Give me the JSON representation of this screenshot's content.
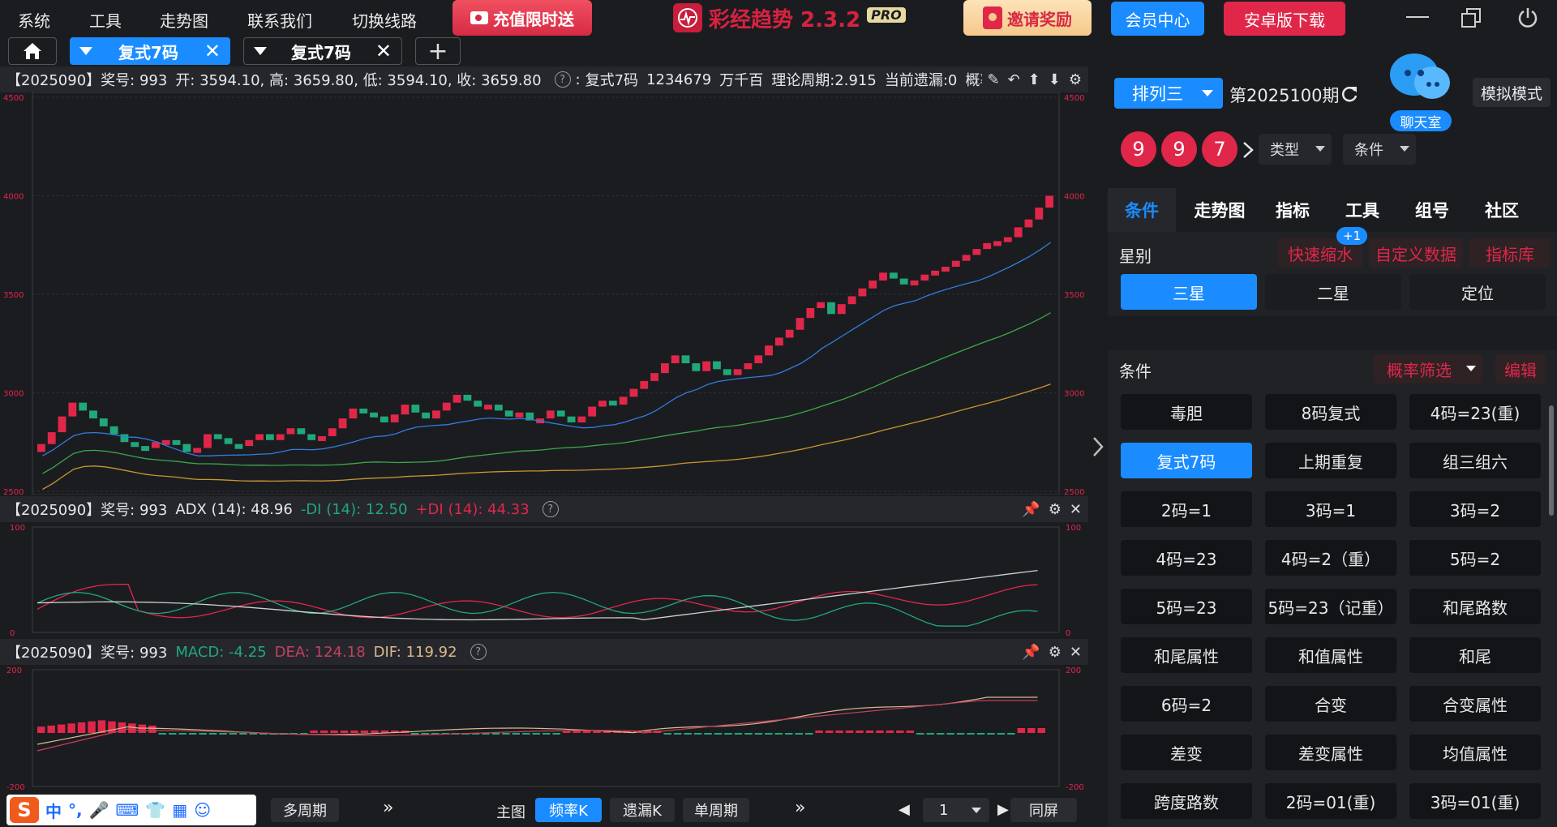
{
  "menu": {
    "items": [
      "系统",
      "工具",
      "走势图",
      "联系我们",
      "切换线路"
    ]
  },
  "promo": {
    "recharge": "充值限时送",
    "invite": "邀请奖励"
  },
  "brand": {
    "name": "彩经趋势 2.3.2",
    "badge": "PRO"
  },
  "top_buttons": {
    "member": "会员中心",
    "android": "安卓版下载"
  },
  "tabs": [
    {
      "label": "复式7码",
      "active": true
    },
    {
      "label": "复式7码",
      "active": false
    }
  ],
  "panel_main": {
    "period": "【2025090】奖号: 993",
    "ohlc": "开: 3594.10, 高: 3659.80, 低: 3594.10, 收: 3659.80",
    "type": "复式7码",
    "numbers": "1234679",
    "positions": "万千百",
    "theory": "理论周期:2.915",
    "miss": "当前遗漏:0",
    "prob": "概率:"
  },
  "panel_adx": {
    "period": "【2025090】奖号: 993",
    "adx": "ADX (14): 48.96",
    "mdi": "-DI (14): 12.50",
    "pdi": "+DI (14): 44.33"
  },
  "panel_macd": {
    "period": "【2025090】奖号: 993",
    "macd": "MACD: -4.25",
    "dea": "DEA: 124.18",
    "dif": "DIF: 119.92"
  },
  "chart_data": [
    {
      "type": "candlestick",
      "ylim": [
        2500,
        4500
      ],
      "yticks": [
        "4500",
        "4000",
        "3500",
        "3000",
        "2500"
      ],
      "closes": [
        2740,
        2800,
        2880,
        2950,
        2910,
        2870,
        2830,
        2790,
        2750,
        2730,
        2720,
        2750,
        2760,
        2740,
        2700,
        2720,
        2790,
        2770,
        2740,
        2730,
        2760,
        2790,
        2760,
        2790,
        2820,
        2790,
        2760,
        2780,
        2820,
        2870,
        2920,
        2900,
        2880,
        2850,
        2890,
        2940,
        2900,
        2870,
        2910,
        2950,
        2990,
        2960,
        2930,
        2940,
        2910,
        2880,
        2900,
        2860,
        2870,
        2910,
        2880,
        2850,
        2880,
        2930,
        2960,
        2940,
        2980,
        3020,
        3060,
        3100,
        3150,
        3190,
        3150,
        3110,
        3160,
        3120,
        3090,
        3120,
        3150,
        3190,
        3240,
        3280,
        3320,
        3380,
        3430,
        3460,
        3400,
        3450,
        3490,
        3530,
        3570,
        3610,
        3580,
        3550,
        3570,
        3600,
        3620,
        3640,
        3670,
        3700,
        3730,
        3760,
        3770,
        3790,
        3840,
        3880,
        3940,
        4000
      ]
    },
    {
      "type": "line",
      "name": "ADX",
      "ylim": [
        0,
        100
      ],
      "yticks": [
        "100",
        "0"
      ]
    },
    {
      "type": "bar",
      "name": "MACD",
      "ylim": [
        -200,
        200
      ],
      "yticks": [
        "200",
        "-200"
      ]
    }
  ],
  "bottombar": {
    "multi": "多周期",
    "main_label": "主图",
    "freq": "频率K",
    "miss": "遗漏K",
    "single": "单周期",
    "page": "1",
    "same": "同屏",
    "ime": [
      "中",
      "°,"
    ]
  },
  "right": {
    "lottery": "排列三",
    "issue": "第2025100期",
    "chat": "聊天室",
    "sim": "模拟模式",
    "balls": [
      "9",
      "9",
      "7"
    ],
    "type_dd": "类型",
    "cond_dd": "条件",
    "tabs": [
      "条件",
      "走势图",
      "指标",
      "工具",
      "组号",
      "社区"
    ],
    "star_title": "星别",
    "star_links": [
      "快速缩水",
      "自定义数据",
      "指标库"
    ],
    "badge": "+1",
    "stars": [
      "三星",
      "二星",
      "定位"
    ],
    "cond_title": "条件",
    "prob_filter": "概率筛选",
    "edit": "编辑",
    "conditions": [
      "毒胆",
      "8码复式",
      "4码=23(重)",
      "复式7码",
      "上期重复",
      "组三组六",
      "2码=1",
      "3码=1",
      "3码=2",
      "4码=23",
      "4码=2（重）",
      "5码=2",
      "5码=23",
      "5码=23（记重）",
      "和尾路数",
      "和尾属性",
      "和值属性",
      "和尾",
      "6码=2",
      "合变",
      "合变属性",
      "差变",
      "差变属性",
      "均值属性",
      "跨度路数",
      "2码=01(重)",
      "3码=01(重)"
    ]
  }
}
